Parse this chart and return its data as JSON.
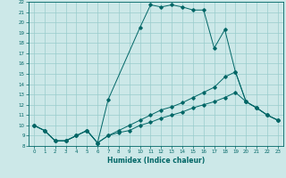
{
  "title": "",
  "xlabel": "Humidex (Indice chaleur)",
  "bg_color": "#cce8e8",
  "line_color": "#006666",
  "grid_color": "#99cccc",
  "xlim": [
    -0.5,
    23.5
  ],
  "ylim": [
    8,
    22
  ],
  "xticks": [
    0,
    1,
    2,
    3,
    4,
    5,
    6,
    7,
    8,
    9,
    10,
    11,
    12,
    13,
    14,
    15,
    16,
    17,
    18,
    19,
    20,
    21,
    22,
    23
  ],
  "yticks": [
    8,
    9,
    10,
    11,
    12,
    13,
    14,
    15,
    16,
    17,
    18,
    19,
    20,
    21,
    22
  ],
  "line1_x": [
    0,
    1,
    2,
    3,
    4,
    5,
    6,
    7,
    10,
    11,
    12,
    13,
    14,
    15,
    16,
    17,
    18,
    19,
    20,
    21,
    22,
    23
  ],
  "line1_y": [
    10,
    9.5,
    8.5,
    8.5,
    9,
    9.5,
    8.3,
    12.5,
    19.5,
    21.7,
    21.5,
    21.7,
    21.5,
    21.2,
    21.2,
    17.5,
    19.3,
    15.2,
    12.3,
    11.7,
    11.0,
    10.5
  ],
  "line2_x": [
    0,
    1,
    2,
    3,
    4,
    5,
    6,
    7,
    8,
    9,
    10,
    11,
    12,
    13,
    14,
    15,
    16,
    17,
    18,
    19,
    20,
    21,
    22,
    23
  ],
  "line2_y": [
    10,
    9.5,
    8.5,
    8.5,
    9,
    9.5,
    8.3,
    9.0,
    9.5,
    10.0,
    10.5,
    11.0,
    11.5,
    11.8,
    12.2,
    12.7,
    13.2,
    13.7,
    14.7,
    15.2,
    12.3,
    11.7,
    11.0,
    10.5
  ],
  "line3_x": [
    0,
    1,
    2,
    3,
    4,
    5,
    6,
    7,
    8,
    9,
    10,
    11,
    12,
    13,
    14,
    15,
    16,
    17,
    18,
    19,
    20,
    21,
    22,
    23
  ],
  "line3_y": [
    10,
    9.5,
    8.5,
    8.5,
    9,
    9.5,
    8.3,
    9.0,
    9.3,
    9.5,
    10.0,
    10.3,
    10.7,
    11.0,
    11.3,
    11.7,
    12.0,
    12.3,
    12.7,
    13.2,
    12.3,
    11.7,
    11.0,
    10.5
  ]
}
